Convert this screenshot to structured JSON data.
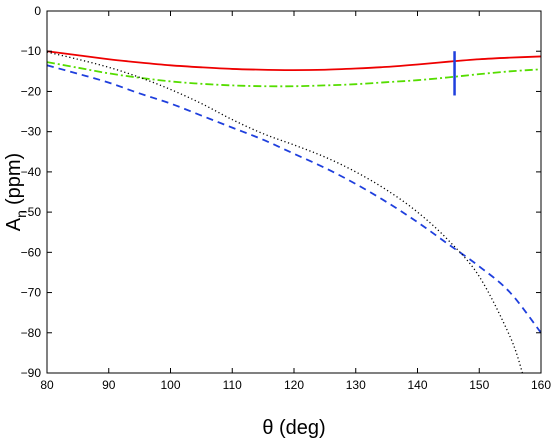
{
  "chart_data": {
    "type": "line",
    "title": "",
    "xlabel": "θ (deg)",
    "ylabel_main": "A",
    "ylabel_sub": "n",
    "ylabel_unit": "(ppm)",
    "xlim": [
      80,
      160
    ],
    "ylim": [
      -90,
      0
    ],
    "xticks": [
      "80",
      "90",
      "100",
      "110",
      "120",
      "130",
      "140",
      "150",
      "160"
    ],
    "yticks": [
      "0",
      "−10",
      "−20",
      "−30",
      "−40",
      "−50",
      "−60",
      "−70",
      "−80",
      "−90"
    ],
    "grid": false,
    "legend": "none",
    "series": [
      {
        "style": "solid",
        "color": "#ee0000",
        "x": [
          80,
          85,
          90,
          95,
          100,
          105,
          110,
          115,
          120,
          125,
          130,
          135,
          140,
          145,
          150,
          155,
          160
        ],
        "y": [
          -10,
          -11,
          -12,
          -12.8,
          -13.5,
          -14,
          -14.4,
          -14.6,
          -14.7,
          -14.6,
          -14.3,
          -13.9,
          -13.3,
          -12.6,
          -12,
          -11.6,
          -11.3
        ]
      },
      {
        "style": "dashdot",
        "color": "#55dd00",
        "x": [
          80,
          85,
          90,
          95,
          100,
          105,
          110,
          115,
          120,
          125,
          130,
          135,
          140,
          145,
          150,
          155,
          160
        ],
        "y": [
          -12.7,
          -14.1,
          -15.5,
          -16.6,
          -17.5,
          -18.1,
          -18.5,
          -18.7,
          -18.7,
          -18.5,
          -18.2,
          -17.7,
          -17.2,
          -16.5,
          -15.7,
          -15,
          -14.5
        ]
      },
      {
        "style": "dashed",
        "color": "#1f3fdd",
        "x": [
          80,
          85,
          90,
          95,
          100,
          105,
          110,
          115,
          120,
          125,
          130,
          135,
          140,
          145,
          150,
          155,
          160
        ],
        "y": [
          -13.5,
          -15.6,
          -17.8,
          -20.5,
          -23,
          -26,
          -29,
          -32,
          -35.5,
          -39,
          -43,
          -47.5,
          -52.5,
          -58,
          -63.5,
          -70,
          -80
        ]
      },
      {
        "style": "dotted",
        "color": "#000000",
        "x": [
          80,
          85,
          90,
          95,
          100,
          105,
          110,
          115,
          120,
          125,
          130,
          135,
          140,
          145,
          150,
          155,
          157
        ],
        "y": [
          -10.2,
          -12,
          -14,
          -16.5,
          -19.5,
          -23,
          -27,
          -30.5,
          -33.3,
          -36.3,
          -40,
          -44.5,
          -50,
          -57,
          -66,
          -81,
          -90
        ]
      }
    ],
    "marker": {
      "type": "vertical-bar",
      "color": "#1f3fdd",
      "x": 146,
      "y_range": [
        -10,
        -21
      ]
    }
  }
}
